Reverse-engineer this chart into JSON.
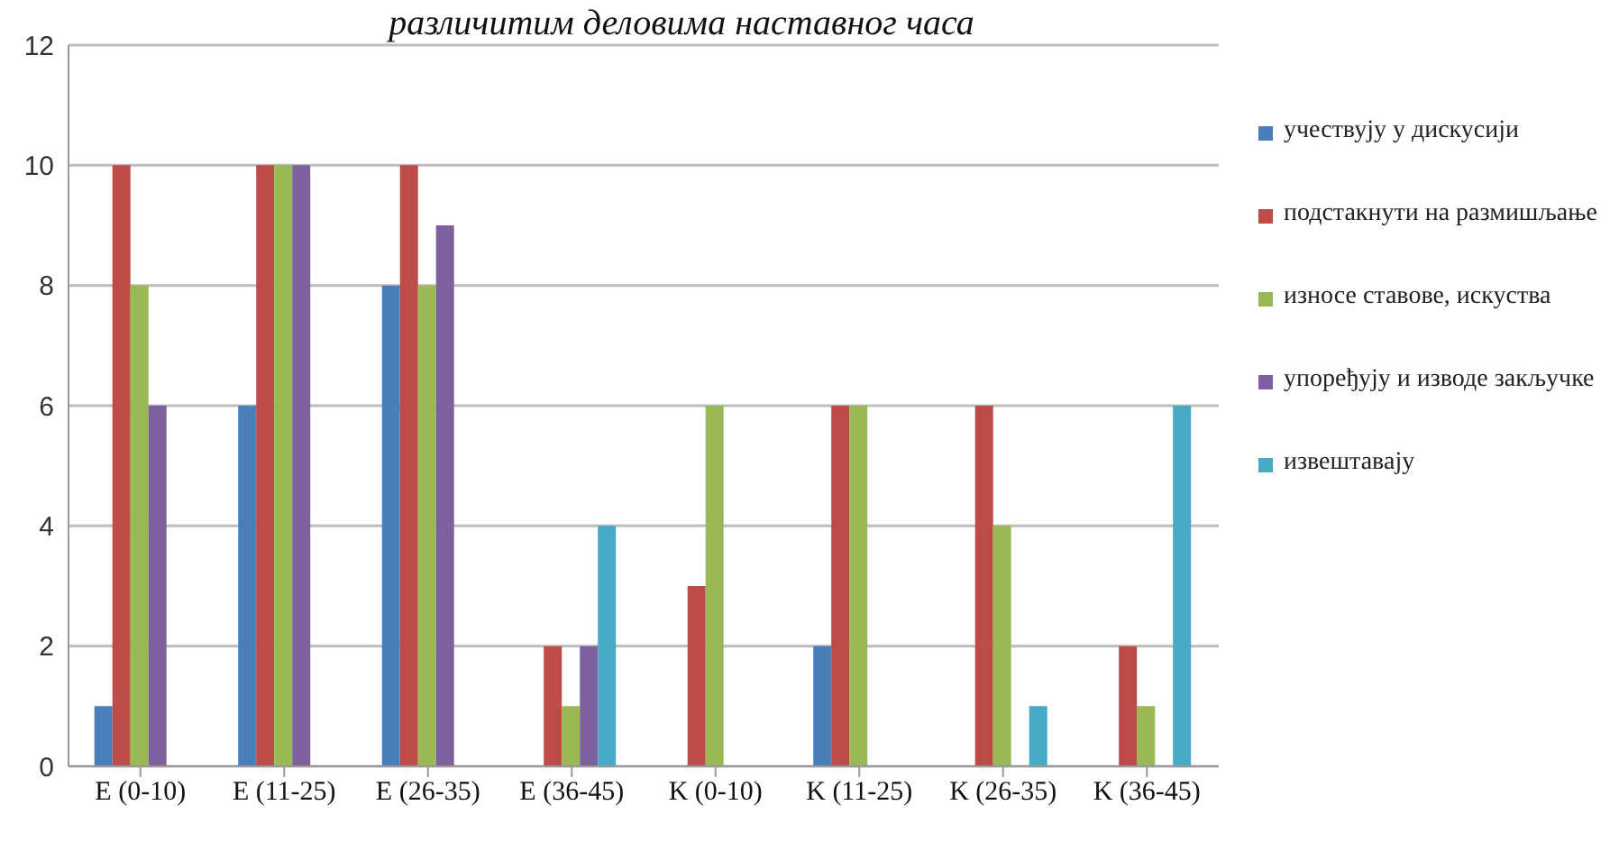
{
  "chart_data": {
    "type": "bar",
    "title": "различитим деловима наставног часа",
    "categories": [
      "E (0-10)",
      "E (11-25)",
      "E (26-35)",
      "E (36-45)",
      "K (0-10)",
      "K (11-25)",
      "K (26-35)",
      "K (36-45)"
    ],
    "series": [
      {
        "name": "учествују у дискусији",
        "color": "#4a7ebb",
        "values": [
          1,
          6,
          8,
          0,
          0,
          2,
          0,
          0
        ]
      },
      {
        "name": "подстакнути на размишљање",
        "color": "#be4b48",
        "values": [
          10,
          10,
          10,
          2,
          3,
          6,
          6,
          2
        ]
      },
      {
        "name": "износе ставове, искуства",
        "color": "#98b954",
        "values": [
          8,
          10,
          8,
          1,
          6,
          6,
          4,
          1
        ]
      },
      {
        "name": "упоређују и изводе закључке",
        "color": "#7d60a0",
        "values": [
          6,
          10,
          9,
          2,
          0,
          0,
          0,
          0
        ]
      },
      {
        "name": "извештавају",
        "color": "#46aac5",
        "values": [
          0,
          0,
          0,
          4,
          0,
          0,
          1,
          6
        ]
      }
    ],
    "ylim": [
      0,
      12
    ],
    "yticks": [
      0,
      2,
      4,
      6,
      8,
      10,
      12
    ],
    "grid": "y",
    "legend": "right"
  }
}
